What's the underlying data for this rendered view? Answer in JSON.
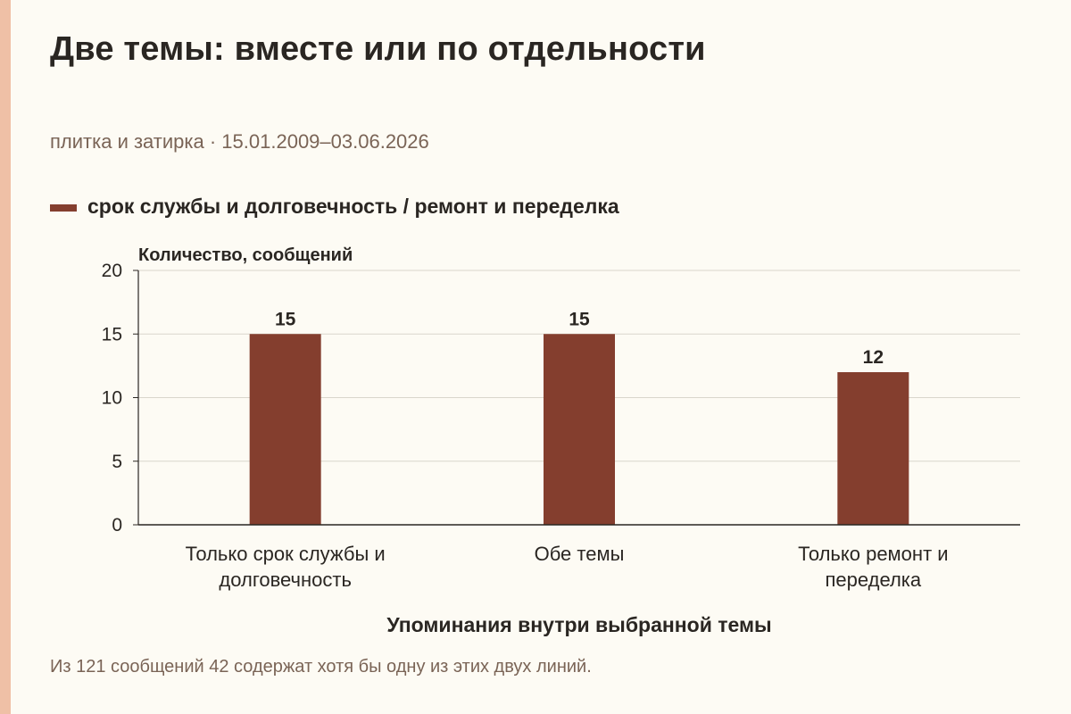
{
  "title": "Две темы: вместе или по отдельности",
  "subtitle": "плитка и затирка · 15.01.2009–03.06.2026",
  "colors": {
    "bar": "#843e2e",
    "accent_strip": "#efc0a6",
    "background": "#fdfbf4",
    "grid": "#d9d6cc",
    "axis": "#2a2622"
  },
  "chart_data": {
    "type": "bar",
    "categories": [
      [
        "Только срок службы и",
        "долговечность"
      ],
      [
        "Обе темы"
      ],
      [
        "Только ремонт и",
        "переделка"
      ]
    ],
    "series": [
      {
        "name": "срок службы и долговечность / ремонт и переделка",
        "values": [
          15,
          15,
          12
        ]
      }
    ],
    "ylabel": "Количество, сообщений",
    "xlabel": "Упоминания внутри выбранной темы",
    "ylim": [
      0,
      20
    ],
    "yticks": [
      0,
      5,
      10,
      15,
      20
    ],
    "grid": true,
    "data_labels": true,
    "legend_position": "top-left"
  },
  "note": "Из 121 сообщений 42 содержат хотя бы одну из этих двух линий."
}
